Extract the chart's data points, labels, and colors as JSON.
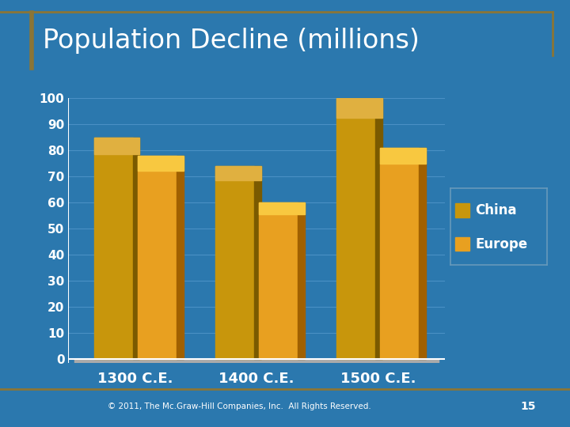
{
  "title": "Population Decline (millions)",
  "categories": [
    "1300 C.E.",
    "1400 C.E.",
    "1500 C.E."
  ],
  "china_values": [
    85,
    74,
    100
  ],
  "europe_values": [
    78,
    60,
    81
  ],
  "china_color": "#C8960C",
  "china_light": "#D4A020",
  "europe_color": "#E8A020",
  "europe_light": "#F0B030",
  "background_color": "#2B78AE",
  "grid_color": "#4A90C4",
  "ylim": [
    0,
    100
  ],
  "yticks": [
    0,
    10,
    20,
    30,
    40,
    50,
    60,
    70,
    80,
    90,
    100
  ],
  "title_color": "#FFFFFF",
  "tick_color": "#FFFFFF",
  "legend_labels": [
    "China",
    "Europe"
  ],
  "footer_text": "© 2011, The Mc.Graw-Hill Companies, Inc.  All Rights Reserved.",
  "page_number": "15",
  "title_fontsize": 24,
  "tick_fontsize": 11,
  "xlabel_fontsize": 13,
  "legend_fontsize": 12,
  "bar_width": 0.32,
  "border_color": "#8B7536",
  "title_bar_color": "#8B7536",
  "legend_edge_color": "#6699BB",
  "floor_color": "#AAAAAA"
}
